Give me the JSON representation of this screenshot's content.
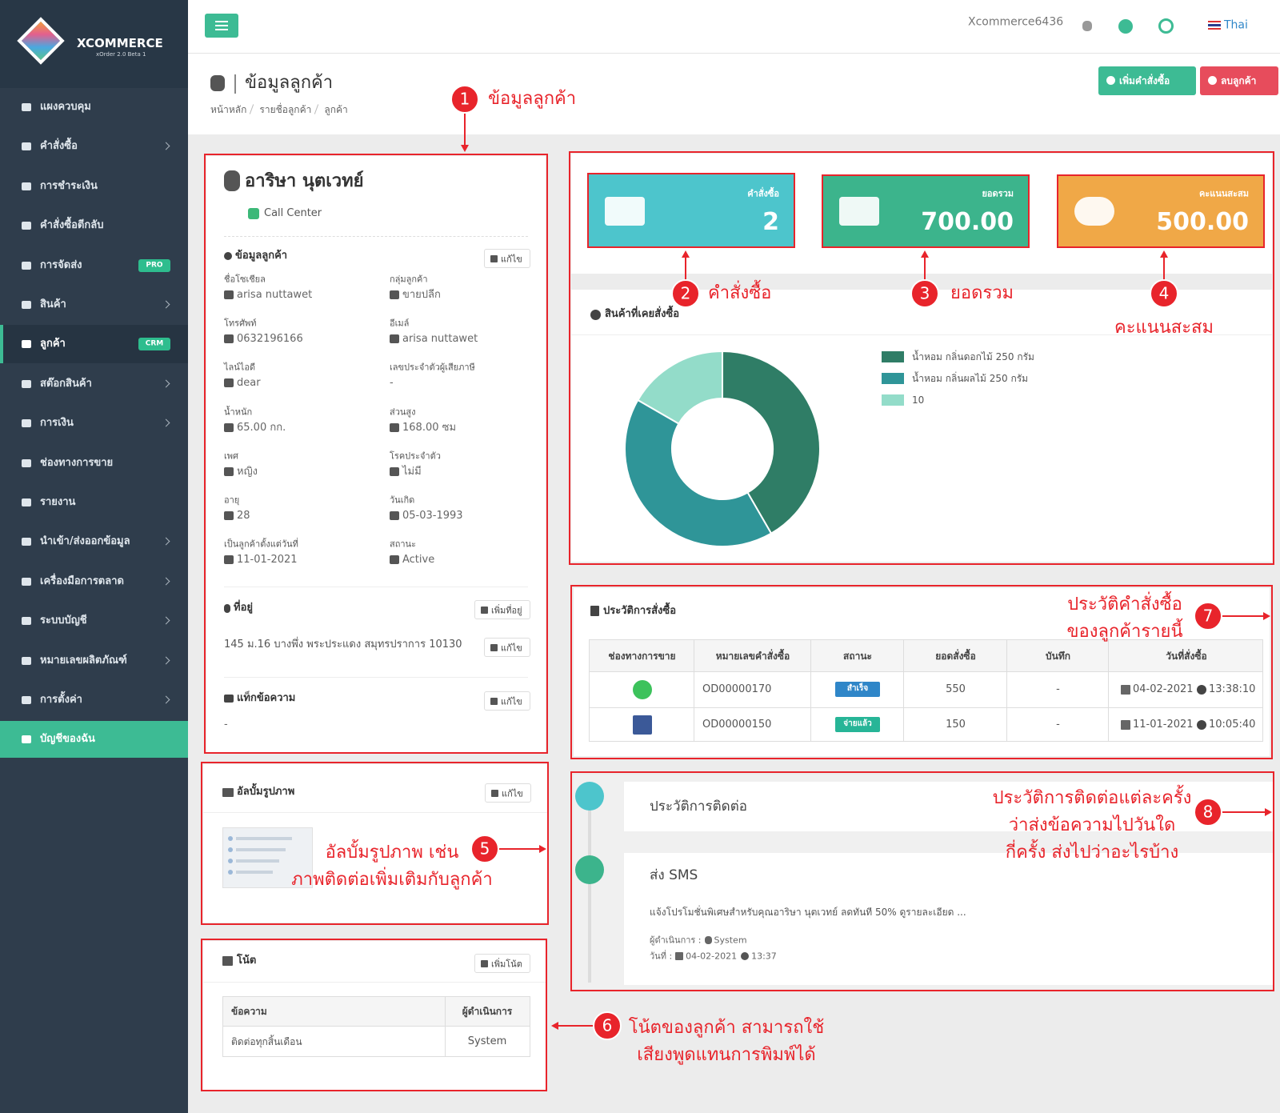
{
  "sidebar": {
    "brand": "XCOMMERCE",
    "version": "xOrder 2.0 Beta 1",
    "menu": [
      {
        "label": "แผงควบคุม"
      },
      {
        "label": "คำสั่งซื้อ"
      },
      {
        "label": "การชำระเงิน"
      },
      {
        "label": "คำสั่งซื้อตีกลับ"
      },
      {
        "label": "การจัดส่ง",
        "badge": "PRO"
      },
      {
        "label": "สินค้า"
      },
      {
        "label": "ลูกค้า",
        "badge": "CRM"
      },
      {
        "label": "สต๊อกสินค้า"
      },
      {
        "label": "การเงิน"
      },
      {
        "label": "ช่องทางการขาย"
      },
      {
        "label": "รายงาน"
      },
      {
        "label": "นำเข้า/ส่งออกข้อมูล"
      },
      {
        "label": "เครื่องมือการตลาด"
      },
      {
        "label": "ระบบบัญชี"
      },
      {
        "label": "หมายเลขผลิตภัณฑ์"
      },
      {
        "label": "การตั้งค่า"
      },
      {
        "label": "บัญชีของฉัน"
      }
    ]
  },
  "topbar": {
    "user": "Xcommerce6436",
    "language": "Thai"
  },
  "header": {
    "title": "ข้อมูลลูกค้า",
    "breadcrumb": [
      "หน้าหลัก",
      "รายชื่อลูกค้า",
      "ลูกค้า"
    ],
    "actions": [
      "เพิ่มคำสั่งซื้อ",
      "ลบลูกค้า"
    ]
  },
  "profile": {
    "name": "อาริษา นุตเวทย์",
    "source": "Call Center",
    "section": "ข้อมูลลูกค้า",
    "edit": "แก้ไข",
    "fields": [
      {
        "label": "ชื่อโซเชียล",
        "value": "arisa nuttawet"
      },
      {
        "label": "กลุ่มลูกค้า",
        "value": "ขายปลีก"
      },
      {
        "label": "โทรศัพท์",
        "value": "0632196166"
      },
      {
        "label": "อีเมล์",
        "value": "arisa nuttawet"
      },
      {
        "label": "ไลน์ไอดี",
        "value": "dear"
      },
      {
        "label": "เลขประจำตัวผู้เสียภาษี",
        "value": "-"
      },
      {
        "label": "น้ำหนัก",
        "value": "65.00 กก."
      },
      {
        "label": "ส่วนสูง",
        "value": "168.00 ซม"
      },
      {
        "label": "เพศ",
        "value": "หญิง"
      },
      {
        "label": "โรคประจำตัว",
        "value": "ไม่มี"
      },
      {
        "label": "อายุ",
        "value": "28"
      },
      {
        "label": "วันเกิด",
        "value": "05-03-1993"
      },
      {
        "label": "เป็นลูกค้าตั้งแต่วันที่",
        "value": "11-01-2021"
      },
      {
        "label": "สถานะ",
        "value": "Active"
      }
    ],
    "address": {
      "title": "ที่อยู่",
      "add": "เพิ่มที่อยู่",
      "text": "145 ม.16 บางพึ่ง พระประแดง สมุทรปราการ 10130",
      "edit": "แก้ไข"
    },
    "tags": {
      "title": "แท็กข้อความ",
      "edit": "แก้ไข",
      "value": "-"
    }
  },
  "stats": [
    {
      "label": "คำสั่งซื้อ",
      "value": "2"
    },
    {
      "label": "ยอดรวม",
      "value": "700.00"
    },
    {
      "label": "คะแนนสะสม",
      "value": "500.00"
    }
  ],
  "chart_data": {
    "type": "pie",
    "title": "สินค้าที่เคยสั่งซื้อ",
    "categories": [
      "น้ำหอม กลิ่นดอกไม้ 250 กรัม",
      "น้ำหอม กลิ่นผลไม้ 250 กรัม",
      "10"
    ],
    "values": [
      5,
      5,
      2
    ],
    "colors": [
      "#2f7d66",
      "#2f9598",
      "#93dcc9"
    ]
  },
  "orders": {
    "title": "ประวัติการสั่งซื้อ",
    "columns": [
      "ช่องทางการขาย",
      "หมายเลขคำสั่งซื้อ",
      "สถานะ",
      "ยอดสั่งซื้อ",
      "บันทึก",
      "วันที่สั่งซื้อ"
    ],
    "rows": [
      [
        "OD00000170",
        "สำเร็จ",
        "550",
        "-",
        "04-02-2021",
        "13:38:10"
      ],
      [
        "OD00000150",
        "จ่ายแล้ว",
        "150",
        "-",
        "11-01-2021",
        "10:05:40"
      ]
    ]
  },
  "contact": {
    "title": "ประวัติการติดต่อ",
    "entry": {
      "title": "ส่ง SMS",
      "message": "แจ้งโปรโมชั่นพิเศษสำหรับคุณอาริษา นุตเวทย์ ลดทันที 50% ดูรายละเอียด ...",
      "operator_label": "ผู้ดำเนินการ :",
      "operator": "System",
      "date_label": "วันที่ :",
      "date": "04-02-2021",
      "time": "13:37"
    }
  },
  "album": {
    "title": "อัลบั้มรูปภาพ",
    "edit": "แก้ไข"
  },
  "notes": {
    "title": "โน้ต",
    "add": "เพิ่มโน้ต",
    "columns": [
      "ข้อความ",
      "ผู้ดำเนินการ"
    ],
    "rows": [
      [
        "ติดต่อทุกสิ้นเดือน",
        "System"
      ]
    ]
  },
  "annotations": [
    {
      "number": "1",
      "lines": [
        "ข้อมูลลูกค้า"
      ]
    },
    {
      "number": "2",
      "lines": [
        "คำสั่งซื้อ"
      ]
    },
    {
      "number": "3",
      "lines": [
        "ยอดรวม"
      ]
    },
    {
      "number": "4",
      "lines": [
        "คะแนนสะสม"
      ]
    },
    {
      "number": "5",
      "lines": [
        "อัลบั้มรูปภาพ เช่น",
        "ภาพติดต่อเพิ่มเติมกับลูกค้า"
      ]
    },
    {
      "number": "6",
      "lines": [
        "โน้ตของลูกค้า สามารถใช้",
        "เสียงพูดแทนการพิมพ์ได้"
      ]
    },
    {
      "number": "7",
      "lines": [
        "ประวัติคำสั่งซื้อ",
        "ของลูกค้ารายนี้"
      ]
    },
    {
      "number": "8",
      "lines": [
        "ประวัติการติดต่อแต่ละครั้ง",
        "ว่าส่งข้อความไปวันใด",
        "กี่ครั้ง ส่งไปว่าอะไรบ้าง"
      ]
    }
  ]
}
